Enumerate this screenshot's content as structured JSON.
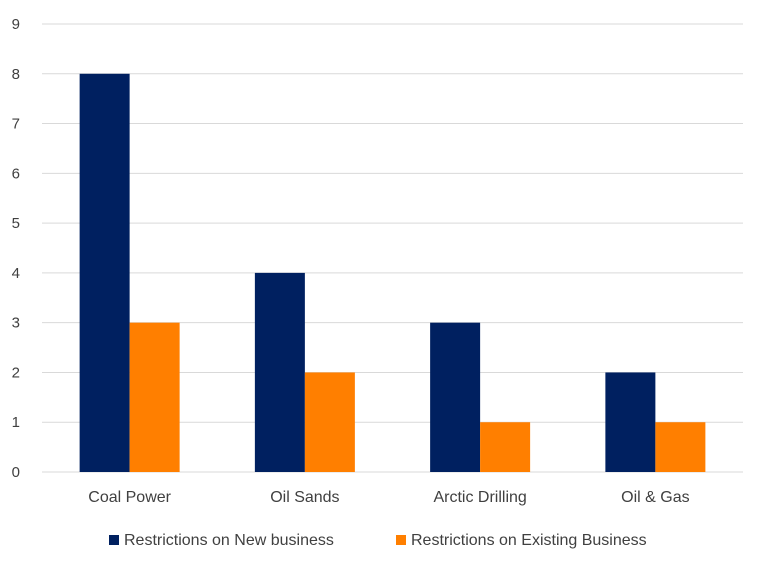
{
  "chart_data": {
    "type": "bar",
    "title": "",
    "xlabel": "",
    "ylabel": "",
    "categories": [
      "Coal Power",
      "Oil Sands",
      "Arctic Drilling",
      "Oil & Gas"
    ],
    "series": [
      {
        "name": "Restrictions on New business",
        "color": "#002060",
        "values": [
          8,
          4,
          3,
          2
        ]
      },
      {
        "name": "Restrictions on Existing Business",
        "color": "#FF7F00",
        "values": [
          3,
          2,
          1,
          1
        ]
      }
    ],
    "ylim": [
      0,
      9
    ],
    "yticks": [
      0,
      1,
      2,
      3,
      4,
      5,
      6,
      7,
      8,
      9
    ],
    "grid": true,
    "legend_position": "bottom",
    "colors": {
      "grid": "#d9d9d9",
      "text": "#404040"
    }
  }
}
